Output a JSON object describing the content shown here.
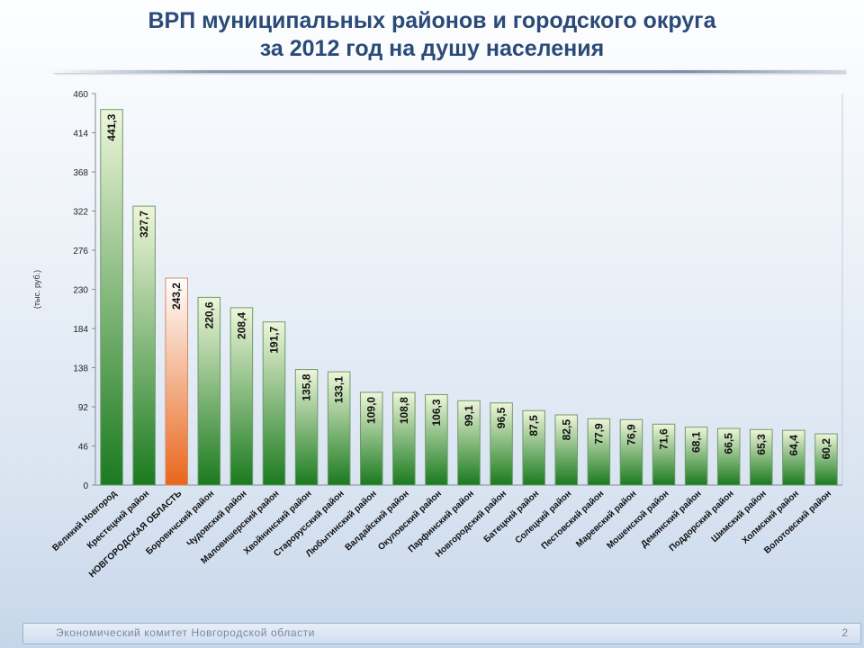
{
  "title_line1": "ВРП муниципальных районов и городского округа",
  "title_line2": "за 2012 год на душу населения",
  "footer": {
    "text": "Экономический комитет Новгородской области",
    "page": "2"
  },
  "colors": {
    "bar_top": "#eef6da",
    "bar_bottom": "#1a7a1e",
    "highlight_top": "#ffffff",
    "highlight_bottom": "#e8661c",
    "title": "#2a4a78"
  },
  "chart_data": {
    "type": "bar",
    "ylabel": "(тыс. руб.)",
    "ylim": [
      0,
      460
    ],
    "yticks": [
      "0",
      "46",
      "92",
      "138",
      "184",
      "230",
      "276",
      "322",
      "368",
      "414",
      "460"
    ],
    "grid": false,
    "highlight_index": 2,
    "categories": [
      "Великий Новгород",
      "Крестецкий район",
      "НОВГОРОДСКАЯ ОБЛАСТЬ",
      "Боровичский район",
      "Чудовский район",
      "Маловишерский район",
      "Хвойнинский район",
      "Старорусский район",
      "Любытинский район",
      "Валдайский район",
      "Окуловский район",
      "Парфинский район",
      "Новгородский район",
      "Батецкий район",
      "Солецкий район",
      "Пестовский район",
      "Маревский район",
      "Мошенской район",
      "Демянский район",
      "Поддорский район",
      "Шимский район",
      "Холмский район",
      "Волотовский район"
    ],
    "values": [
      441.3,
      327.7,
      243.2,
      220.6,
      208.4,
      191.7,
      135.8,
      133.1,
      109.0,
      108.8,
      106.3,
      99.1,
      96.5,
      87.5,
      82.5,
      77.9,
      76.9,
      71.6,
      68.1,
      66.5,
      65.3,
      64.4,
      60.2
    ],
    "value_labels": [
      "441,3",
      "327,7",
      "243,2",
      "220,6",
      "208,4",
      "191,7",
      "135,8",
      "133,1",
      "109,0",
      "108,8",
      "106,3",
      "99,1",
      "96,5",
      "87,5",
      "82,5",
      "77,9",
      "76,9",
      "71,6",
      "68,1",
      "66,5",
      "65,3",
      "64,4",
      "60,2"
    ]
  }
}
